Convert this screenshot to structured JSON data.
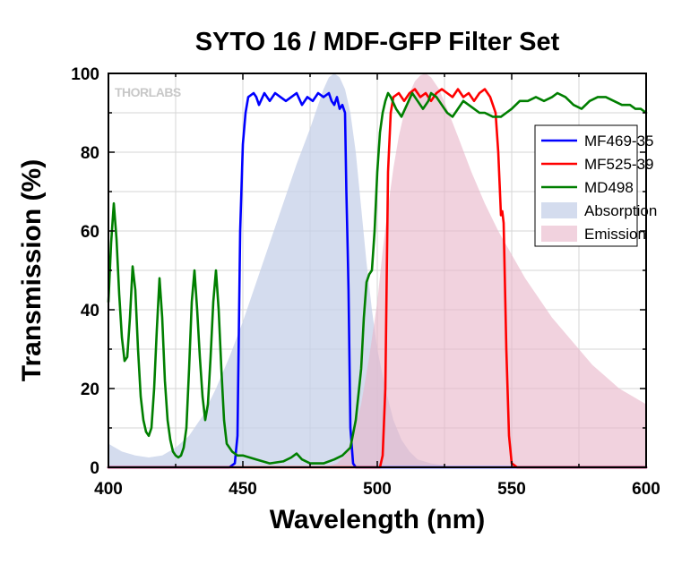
{
  "chart_data": {
    "type": "line",
    "title": "SYTO 16 / MDF-GFP Filter Set",
    "xlabel": "Wavelength (nm)",
    "ylabel": "Transmission (%)",
    "xlim": [
      400,
      600
    ],
    "ylim": [
      0,
      100
    ],
    "x_ticks": [
      400,
      450,
      500,
      550,
      600
    ],
    "y_ticks": [
      0,
      20,
      40,
      60,
      80,
      100
    ],
    "grid": true,
    "legend_position": "right",
    "watermark_brand": "THORLABS",
    "series": [
      {
        "name": "MF469-35",
        "kind": "line",
        "color": "#0000ff",
        "points": [
          [
            400,
            0
          ],
          [
            445,
            0
          ],
          [
            447,
            1
          ],
          [
            448,
            8
          ],
          [
            449,
            60
          ],
          [
            450,
            82
          ],
          [
            451,
            90
          ],
          [
            452,
            94
          ],
          [
            454,
            95
          ],
          [
            455,
            94
          ],
          [
            456,
            92
          ],
          [
            458,
            95
          ],
          [
            460,
            93
          ],
          [
            462,
            95
          ],
          [
            464,
            94
          ],
          [
            466,
            93
          ],
          [
            468,
            94
          ],
          [
            470,
            95
          ],
          [
            472,
            92
          ],
          [
            474,
            94
          ],
          [
            476,
            93
          ],
          [
            478,
            95
          ],
          [
            480,
            94
          ],
          [
            482,
            95
          ],
          [
            483,
            93
          ],
          [
            484,
            92
          ],
          [
            485,
            94
          ],
          [
            486,
            91
          ],
          [
            487,
            92
          ],
          [
            488,
            90
          ],
          [
            488.5,
            70
          ],
          [
            489,
            55
          ],
          [
            489.3,
            45
          ],
          [
            489.6,
            30
          ],
          [
            490,
            10
          ],
          [
            491,
            1
          ],
          [
            492,
            0
          ],
          [
            600,
            0
          ]
        ]
      },
      {
        "name": "MF525-39",
        "kind": "line",
        "color": "#ff0000",
        "points": [
          [
            400,
            0
          ],
          [
            501,
            0
          ],
          [
            502,
            3
          ],
          [
            503,
            20
          ],
          [
            504,
            75
          ],
          [
            505,
            90
          ],
          [
            506,
            94
          ],
          [
            508,
            95
          ],
          [
            510,
            93
          ],
          [
            512,
            95
          ],
          [
            514,
            96
          ],
          [
            516,
            94
          ],
          [
            518,
            95
          ],
          [
            520,
            93
          ],
          [
            522,
            95
          ],
          [
            524,
            96
          ],
          [
            526,
            95
          ],
          [
            528,
            94
          ],
          [
            530,
            96
          ],
          [
            532,
            94
          ],
          [
            534,
            95
          ],
          [
            536,
            93
          ],
          [
            538,
            95
          ],
          [
            540,
            96
          ],
          [
            542,
            94
          ],
          [
            543,
            92
          ],
          [
            544,
            90
          ],
          [
            545,
            80
          ],
          [
            546,
            64
          ],
          [
            546.5,
            65
          ],
          [
            547,
            62
          ],
          [
            548,
            30
          ],
          [
            549,
            8
          ],
          [
            550,
            1
          ],
          [
            552,
            0
          ],
          [
            600,
            0
          ]
        ]
      },
      {
        "name": "MD498",
        "kind": "line",
        "color": "#007f00",
        "points": [
          [
            400,
            42
          ],
          [
            401,
            57
          ],
          [
            402,
            67
          ],
          [
            403,
            58
          ],
          [
            404,
            44
          ],
          [
            405,
            33
          ],
          [
            406,
            27
          ],
          [
            407,
            28
          ],
          [
            408,
            38
          ],
          [
            409,
            51
          ],
          [
            410,
            45
          ],
          [
            411,
            30
          ],
          [
            412,
            18
          ],
          [
            413,
            12
          ],
          [
            414,
            9
          ],
          [
            415,
            8
          ],
          [
            416,
            10
          ],
          [
            417,
            20
          ],
          [
            418,
            35
          ],
          [
            419,
            48
          ],
          [
            420,
            38
          ],
          [
            421,
            22
          ],
          [
            422,
            12
          ],
          [
            423,
            7
          ],
          [
            424,
            4
          ],
          [
            425,
            3
          ],
          [
            426,
            2.5
          ],
          [
            427,
            3
          ],
          [
            428,
            5
          ],
          [
            429,
            10
          ],
          [
            430,
            25
          ],
          [
            431,
            42
          ],
          [
            432,
            50
          ],
          [
            433,
            40
          ],
          [
            434,
            28
          ],
          [
            435,
            18
          ],
          [
            436,
            12
          ],
          [
            437,
            16
          ],
          [
            438,
            28
          ],
          [
            439,
            42
          ],
          [
            440,
            50
          ],
          [
            441,
            40
          ],
          [
            442,
            25
          ],
          [
            443,
            12
          ],
          [
            444,
            6
          ],
          [
            446,
            4
          ],
          [
            448,
            3
          ],
          [
            450,
            3
          ],
          [
            455,
            2
          ],
          [
            460,
            1
          ],
          [
            465,
            1.5
          ],
          [
            468,
            2.5
          ],
          [
            470,
            3.5
          ],
          [
            472,
            2
          ],
          [
            475,
            1
          ],
          [
            480,
            1
          ],
          [
            484,
            2
          ],
          [
            487,
            3
          ],
          [
            490,
            5
          ],
          [
            492,
            12
          ],
          [
            494,
            25
          ],
          [
            495,
            38
          ],
          [
            496,
            47
          ],
          [
            497,
            49
          ],
          [
            498,
            50
          ],
          [
            499,
            60
          ],
          [
            500,
            75
          ],
          [
            501,
            85
          ],
          [
            502,
            90
          ],
          [
            503,
            93
          ],
          [
            504,
            95
          ],
          [
            505,
            94
          ],
          [
            507,
            91
          ],
          [
            509,
            89
          ],
          [
            511,
            92
          ],
          [
            513,
            95
          ],
          [
            515,
            93
          ],
          [
            517,
            91
          ],
          [
            519,
            93
          ],
          [
            520,
            95
          ],
          [
            522,
            94
          ],
          [
            524,
            92
          ],
          [
            526,
            90
          ],
          [
            528,
            89
          ],
          [
            530,
            91
          ],
          [
            532,
            93
          ],
          [
            534,
            92
          ],
          [
            536,
            91
          ],
          [
            538,
            90
          ],
          [
            540,
            90
          ],
          [
            543,
            89
          ],
          [
            546,
            89
          ],
          [
            548,
            90
          ],
          [
            550,
            91
          ],
          [
            553,
            93
          ],
          [
            556,
            93
          ],
          [
            559,
            94
          ],
          [
            562,
            93
          ],
          [
            565,
            94
          ],
          [
            567,
            95
          ],
          [
            570,
            94
          ],
          [
            573,
            92
          ],
          [
            576,
            91
          ],
          [
            579,
            93
          ],
          [
            582,
            94
          ],
          [
            585,
            94
          ],
          [
            588,
            93
          ],
          [
            591,
            92
          ],
          [
            594,
            92
          ],
          [
            596,
            91
          ],
          [
            598,
            91
          ],
          [
            600,
            90
          ]
        ]
      },
      {
        "name": "Absorption",
        "kind": "area",
        "color": "#c6d0e8",
        "opacity": 0.75,
        "points": [
          [
            400,
            6
          ],
          [
            405,
            4
          ],
          [
            410,
            3
          ],
          [
            415,
            2.5
          ],
          [
            420,
            3
          ],
          [
            425,
            5
          ],
          [
            430,
            8
          ],
          [
            435,
            13
          ],
          [
            440,
            20
          ],
          [
            445,
            28
          ],
          [
            450,
            37
          ],
          [
            455,
            47
          ],
          [
            460,
            57
          ],
          [
            465,
            67
          ],
          [
            470,
            77
          ],
          [
            475,
            86
          ],
          [
            478,
            92
          ],
          [
            480,
            96
          ],
          [
            482,
            99
          ],
          [
            484,
            100
          ],
          [
            486,
            99
          ],
          [
            488,
            96
          ],
          [
            490,
            90
          ],
          [
            492,
            80
          ],
          [
            494,
            66
          ],
          [
            496,
            52
          ],
          [
            498,
            40
          ],
          [
            500,
            30
          ],
          [
            503,
            20
          ],
          [
            506,
            12
          ],
          [
            509,
            7
          ],
          [
            512,
            4
          ],
          [
            515,
            2
          ],
          [
            520,
            1
          ],
          [
            525,
            0.5
          ]
        ]
      },
      {
        "name": "Emission",
        "kind": "area",
        "color": "#e8b4c8",
        "opacity": 0.6,
        "points": [
          [
            480,
            0
          ],
          [
            485,
            1
          ],
          [
            488,
            3
          ],
          [
            491,
            8
          ],
          [
            494,
            16
          ],
          [
            497,
            28
          ],
          [
            500,
            42
          ],
          [
            502,
            55
          ],
          [
            504,
            66
          ],
          [
            506,
            76
          ],
          [
            508,
            84
          ],
          [
            510,
            90
          ],
          [
            512,
            95
          ],
          [
            514,
            98
          ],
          [
            516,
            99.5
          ],
          [
            518,
            100
          ],
          [
            520,
            99
          ],
          [
            523,
            96
          ],
          [
            526,
            91
          ],
          [
            530,
            84
          ],
          [
            535,
            75
          ],
          [
            540,
            67
          ],
          [
            545,
            60
          ],
          [
            550,
            54
          ],
          [
            555,
            48
          ],
          [
            560,
            43
          ],
          [
            565,
            38
          ],
          [
            570,
            34
          ],
          [
            575,
            30
          ],
          [
            580,
            26
          ],
          [
            585,
            23
          ],
          [
            590,
            20
          ],
          [
            595,
            18
          ],
          [
            600,
            16
          ]
        ]
      }
    ]
  }
}
